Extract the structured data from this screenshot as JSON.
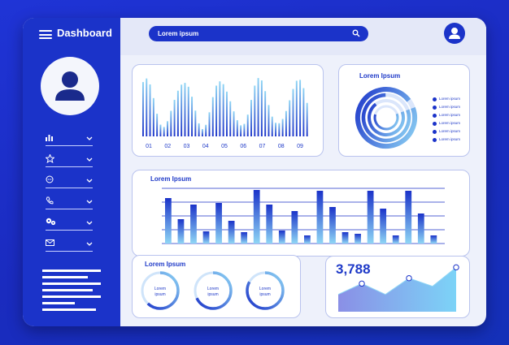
{
  "app": {
    "title": "Dashboard"
  },
  "search": {
    "placeholder": "Lorem ipsum"
  },
  "sidebar": {
    "nav_items": [
      {
        "icon": "bar-chart-icon"
      },
      {
        "icon": "star-icon"
      },
      {
        "icon": "chat-icon"
      },
      {
        "icon": "phone-icon"
      },
      {
        "icon": "gears-icon"
      },
      {
        "icon": "mail-icon"
      }
    ]
  },
  "wave_card": {
    "x_labels": [
      "01",
      "02",
      "03",
      "04",
      "05",
      "06",
      "07",
      "08",
      "09"
    ]
  },
  "rings_card": {
    "title": "Lorem Ipsum",
    "legend": [
      "Lorem ipsum",
      "Lorem ipsum",
      "Lorem ipsum",
      "Lorem ipsum",
      "Lorem ipsum",
      "Lorem ipsum"
    ],
    "rings": [
      0.95,
      0.8,
      0.7,
      0.6
    ]
  },
  "bar_card": {
    "title": "Lorem Ipsum",
    "values": [
      56,
      30,
      48,
      15,
      50,
      28,
      14,
      66,
      48,
      16,
      40,
      10,
      65,
      45,
      14,
      12,
      65,
      43,
      10,
      65,
      37,
      10
    ]
  },
  "donut_card": {
    "title": "Lorem Ipsum",
    "donuts": [
      {
        "label": "Lorem ipsum",
        "value": 0.62
      },
      {
        "label": "Lorem ipsum",
        "value": 0.68
      },
      {
        "label": "Lorem ipsum",
        "value": 0.83
      }
    ]
  },
  "kpi_card": {
    "value": "3,788",
    "points": [
      32,
      52,
      32,
      62,
      47,
      82
    ]
  },
  "colors": {
    "accent": "#1b33c9",
    "light_blue": "#8fd6f5",
    "background": "#1a2bbf"
  }
}
